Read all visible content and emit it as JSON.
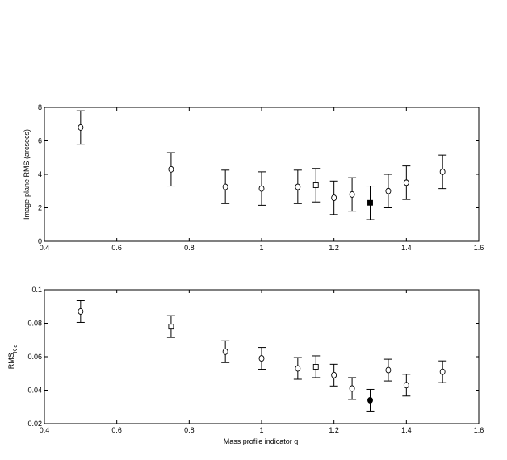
{
  "chart_data": [
    {
      "type": "scatter",
      "error_bars": true,
      "title": "",
      "xlabel": "",
      "ylabel": "Image-plane RMS (arcsecs)",
      "xlim": [
        0.4,
        1.6
      ],
      "ylim": [
        0,
        8
      ],
      "xticks": [
        "0.4",
        "0.6",
        "0.8",
        "1",
        "1.2",
        "1.4",
        "1.6"
      ],
      "yticks": [
        "0",
        "2",
        "4",
        "6",
        "8"
      ],
      "grid": false,
      "points": [
        {
          "x": 0.5,
          "y": 6.8,
          "yerr": 1.0,
          "marker": "circle",
          "filled": false
        },
        {
          "x": 0.75,
          "y": 4.3,
          "yerr": 1.0,
          "marker": "circle",
          "filled": false
        },
        {
          "x": 0.9,
          "y": 3.25,
          "yerr": 1.0,
          "marker": "circle",
          "filled": false
        },
        {
          "x": 1.0,
          "y": 3.15,
          "yerr": 1.0,
          "marker": "circle",
          "filled": false
        },
        {
          "x": 1.1,
          "y": 3.25,
          "yerr": 1.0,
          "marker": "circle",
          "filled": false
        },
        {
          "x": 1.15,
          "y": 3.35,
          "yerr": 1.0,
          "marker": "square",
          "filled": false
        },
        {
          "x": 1.2,
          "y": 2.6,
          "yerr": 1.0,
          "marker": "circle",
          "filled": false
        },
        {
          "x": 1.25,
          "y": 2.8,
          "yerr": 1.0,
          "marker": "circle",
          "filled": false
        },
        {
          "x": 1.3,
          "y": 2.3,
          "yerr": 1.0,
          "marker": "square",
          "filled": true
        },
        {
          "x": 1.35,
          "y": 3.0,
          "yerr": 1.0,
          "marker": "circle",
          "filled": false
        },
        {
          "x": 1.4,
          "y": 3.5,
          "yerr": 1.0,
          "marker": "circle",
          "filled": false
        },
        {
          "x": 1.5,
          "y": 4.15,
          "yerr": 1.0,
          "marker": "circle",
          "filled": false
        }
      ]
    },
    {
      "type": "scatter",
      "error_bars": true,
      "title": "",
      "xlabel": "Mass profile indicator q",
      "ylabel": "RMS",
      "ylabel_sub": "K q",
      "xlim": [
        0.4,
        1.6
      ],
      "ylim": [
        0.02,
        0.1
      ],
      "xticks": [
        "0.4",
        "0.6",
        "0.8",
        "1",
        "1.2",
        "1.4",
        "1.6"
      ],
      "yticks": [
        "0.02",
        "0.04",
        "0.06",
        "0.08",
        "0.1"
      ],
      "grid": false,
      "points": [
        {
          "x": 0.5,
          "y": 0.087,
          "yerr": 0.0065,
          "marker": "circle",
          "filled": false
        },
        {
          "x": 0.75,
          "y": 0.078,
          "yerr": 0.0065,
          "marker": "square",
          "filled": false
        },
        {
          "x": 0.9,
          "y": 0.063,
          "yerr": 0.0065,
          "marker": "circle",
          "filled": false
        },
        {
          "x": 1.0,
          "y": 0.059,
          "yerr": 0.0065,
          "marker": "circle",
          "filled": false
        },
        {
          "x": 1.1,
          "y": 0.053,
          "yerr": 0.0065,
          "marker": "circle",
          "filled": false
        },
        {
          "x": 1.15,
          "y": 0.054,
          "yerr": 0.0065,
          "marker": "square",
          "filled": false
        },
        {
          "x": 1.2,
          "y": 0.049,
          "yerr": 0.0065,
          "marker": "circle",
          "filled": false
        },
        {
          "x": 1.25,
          "y": 0.041,
          "yerr": 0.0065,
          "marker": "circle",
          "filled": false
        },
        {
          "x": 1.3,
          "y": 0.034,
          "yerr": 0.0065,
          "marker": "circle",
          "filled": true
        },
        {
          "x": 1.35,
          "y": 0.052,
          "yerr": 0.0065,
          "marker": "circle",
          "filled": false
        },
        {
          "x": 1.4,
          "y": 0.043,
          "yerr": 0.0065,
          "marker": "circle",
          "filled": false
        },
        {
          "x": 1.5,
          "y": 0.051,
          "yerr": 0.0065,
          "marker": "circle",
          "filled": false
        }
      ]
    }
  ]
}
